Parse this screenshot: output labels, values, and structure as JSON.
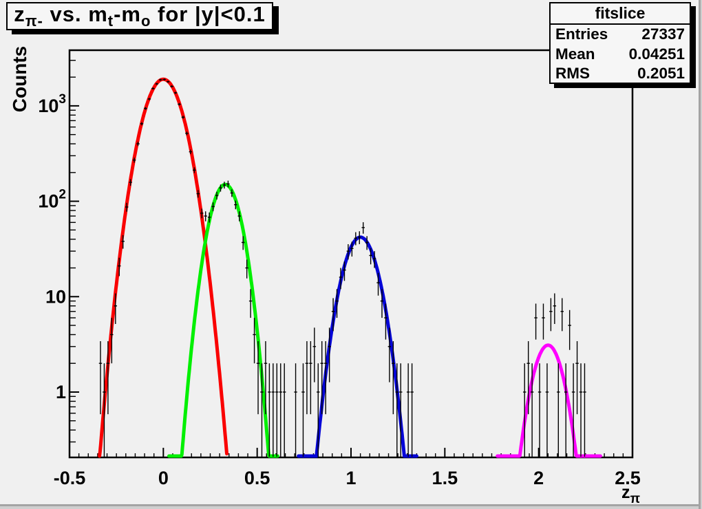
{
  "title": {
    "z": "z",
    "z_sub": "π-",
    "mid1": " vs. m",
    "m1_sub": "t",
    "mid2": "-m",
    "m2_sub": "o",
    "tail": " for |y|<0.1"
  },
  "stats": {
    "title": "fitslice",
    "rows": [
      {
        "label": "Entries",
        "value": "27337"
      },
      {
        "label": "Mean",
        "value": "0.04251"
      },
      {
        "label": "RMS",
        "value": "0.2051"
      }
    ]
  },
  "chart_data": {
    "type": "scatter",
    "title": "z_pi- vs. m_t-m_o for |y|<0.1",
    "xlabel": "z_pi",
    "ylabel": "Counts",
    "x_axis": {
      "min": -0.5,
      "max": 2.5,
      "major_tick_step": 0.5,
      "minor_tick_step": 0.05,
      "major_tick_labels": [
        "-0.5",
        "0",
        "0.5",
        "1",
        "1.5",
        "2",
        "2.5"
      ]
    },
    "y_axis": {
      "scale": "log",
      "min": 0.2065,
      "max": 3830,
      "labeled_decades": [
        1,
        10,
        100,
        1000
      ]
    },
    "axis_title": {
      "x_base": "z",
      "x_sub": "π",
      "y": "Counts"
    },
    "fits": [
      {
        "name": "peak1-red",
        "color": "#fa0000",
        "amplitude": 1900,
        "mean": 0.0,
        "sigma": 0.0795,
        "draw_range": [
          -0.34,
          0.34
        ]
      },
      {
        "name": "peak2-green",
        "color": "#00f000",
        "amplitude": 150,
        "mean": 0.33,
        "sigma": 0.064,
        "draw_range": [
          0.03,
          0.61
        ]
      },
      {
        "name": "peak3-blue",
        "color": "#0505d8",
        "amplitude": 42,
        "mean": 1.05,
        "sigma": 0.072,
        "draw_range": [
          0.72,
          1.35
        ]
      },
      {
        "name": "peak4-magenta",
        "color": "#ff00ff",
        "amplitude": 3.1,
        "mean": 2.05,
        "sigma": 0.065,
        "draw_range": [
          1.78,
          2.33
        ]
      }
    ],
    "bin_width": 0.02,
    "error_model": "sqrt(N), clipped at axis minimum",
    "points": [
      [
        -0.335,
        2
      ],
      [
        -0.315,
        1
      ],
      [
        -0.295,
        2
      ],
      [
        -0.275,
        4
      ],
      [
        -0.255,
        8
      ],
      [
        -0.235,
        21
      ],
      [
        -0.215,
        38
      ],
      [
        -0.195,
        87
      ],
      [
        -0.175,
        158
      ],
      [
        -0.155,
        270
      ],
      [
        -0.135,
        400
      ],
      [
        -0.115,
        650
      ],
      [
        -0.095,
        940
      ],
      [
        -0.075,
        1180
      ],
      [
        -0.055,
        1520
      ],
      [
        -0.035,
        1700
      ],
      [
        -0.015,
        1875
      ],
      [
        0.005,
        1890
      ],
      [
        0.025,
        1790
      ],
      [
        0.045,
        1600
      ],
      [
        0.065,
        1370
      ],
      [
        0.085,
        1040
      ],
      [
        0.105,
        760
      ],
      [
        0.125,
        515
      ],
      [
        0.145,
        330
      ],
      [
        0.165,
        212
      ],
      [
        0.185,
        120
      ],
      [
        0.205,
        75
      ],
      [
        0.225,
        70
      ],
      [
        0.245,
        68
      ],
      [
        0.265,
        88
      ],
      [
        0.285,
        115
      ],
      [
        0.305,
        138
      ],
      [
        0.325,
        148
      ],
      [
        0.345,
        152
      ],
      [
        0.365,
        122
      ],
      [
        0.385,
        92
      ],
      [
        0.405,
        70
      ],
      [
        0.425,
        37
      ],
      [
        0.445,
        20
      ],
      [
        0.465,
        9
      ],
      [
        0.485,
        4
      ],
      [
        0.505,
        2
      ],
      [
        0.525,
        1
      ],
      [
        0.545,
        2
      ],
      [
        0.565,
        1
      ],
      [
        0.585,
        1
      ],
      [
        0.605,
        1
      ],
      [
        0.625,
        1
      ],
      [
        0.645,
        1
      ],
      [
        0.705,
        1
      ],
      [
        0.745,
        1
      ],
      [
        0.765,
        2
      ],
      [
        0.785,
        2
      ],
      [
        0.805,
        3
      ],
      [
        0.825,
        1
      ],
      [
        0.845,
        2
      ],
      [
        0.865,
        2
      ],
      [
        0.885,
        3
      ],
      [
        0.905,
        7
      ],
      [
        0.925,
        9
      ],
      [
        0.945,
        16
      ],
      [
        0.965,
        19
      ],
      [
        0.985,
        30
      ],
      [
        1.005,
        32
      ],
      [
        1.025,
        41
      ],
      [
        1.045,
        42
      ],
      [
        1.065,
        53
      ],
      [
        1.085,
        37
      ],
      [
        1.105,
        27
      ],
      [
        1.125,
        25
      ],
      [
        1.145,
        14
      ],
      [
        1.165,
        9
      ],
      [
        1.185,
        6
      ],
      [
        1.205,
        3
      ],
      [
        1.225,
        2
      ],
      [
        1.245,
        1
      ],
      [
        1.265,
        1
      ],
      [
        1.305,
        1
      ],
      [
        1.325,
        1
      ],
      [
        1.925,
        1
      ],
      [
        1.945,
        2
      ],
      [
        1.965,
        1
      ],
      [
        1.985,
        6
      ],
      [
        2.005,
        1
      ],
      [
        2.025,
        6
      ],
      [
        2.045,
        1
      ],
      [
        2.065,
        7
      ],
      [
        2.085,
        8
      ],
      [
        2.105,
        1
      ],
      [
        2.125,
        7
      ],
      [
        2.145,
        1
      ],
      [
        2.165,
        5
      ],
      [
        2.185,
        1
      ],
      [
        2.205,
        2
      ],
      [
        2.225,
        1
      ],
      [
        2.245,
        1
      ]
    ]
  }
}
